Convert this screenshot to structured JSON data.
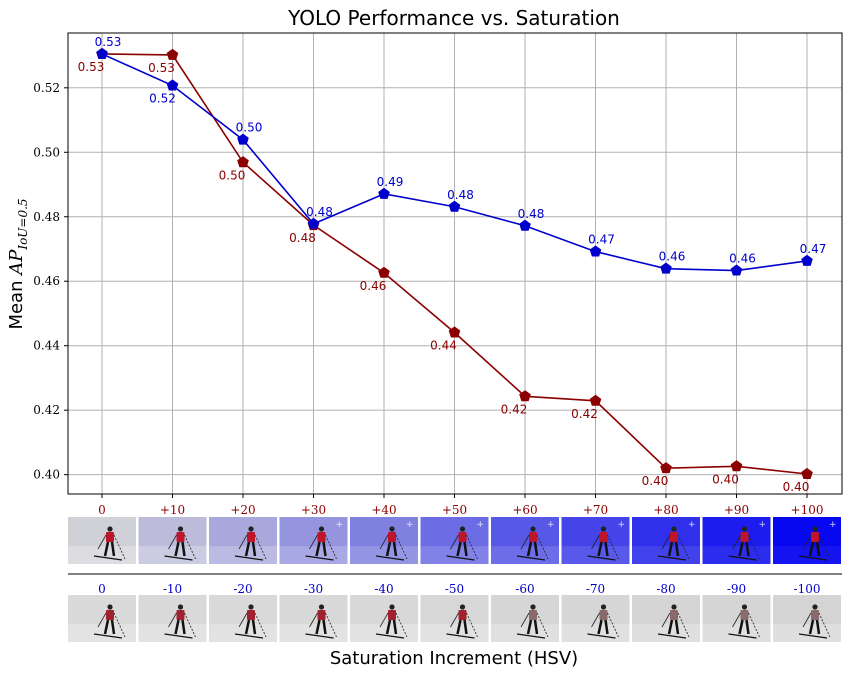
{
  "chart_data": {
    "type": "line",
    "title": "YOLO Performance vs. Saturation",
    "ylabel_prefix": "Mean ",
    "ylabel_math": "AP",
    "ylabel_sub": "IoU=0.5",
    "xlabel": "Saturation Increment (HSV)",
    "ylim": [
      0.394,
      0.537
    ],
    "yticks": [
      "0.40",
      "0.42",
      "0.44",
      "0.46",
      "0.48",
      "0.50",
      "0.52"
    ],
    "grid": true,
    "x": [
      0,
      10,
      20,
      30,
      40,
      50,
      60,
      70,
      80,
      90,
      100
    ],
    "positive_labels": [
      "0",
      "+10",
      "+20",
      "+30",
      "+40",
      "+50",
      "+60",
      "+70",
      "+80",
      "+90",
      "+100"
    ],
    "negative_labels": [
      "0",
      "-10",
      "-20",
      "-30",
      "-40",
      "-50",
      "-60",
      "-70",
      "-80",
      "-90",
      "-100"
    ],
    "series": [
      {
        "color": "#0000cd",
        "values": [
          0.5305,
          0.5207,
          0.5039,
          0.4778,
          0.4871,
          0.4831,
          0.4772,
          0.4692,
          0.4639,
          0.4633,
          0.4663
        ],
        "labels": [
          "0.53",
          "0.52",
          "0.50",
          "0.48",
          "0.49",
          "0.48",
          "0.48",
          "0.47",
          "0.46",
          "0.46",
          "0.47"
        ]
      },
      {
        "color": "#8b0000",
        "values": [
          0.5305,
          0.5302,
          0.4969,
          0.4774,
          0.4626,
          0.4441,
          0.4243,
          0.4229,
          0.402,
          0.4026,
          0.4002
        ],
        "labels": [
          "0.53",
          "0.53",
          "0.50",
          "0.48",
          "0.46",
          "0.44",
          "0.42",
          "0.42",
          "0.40",
          "0.40",
          "0.40"
        ]
      }
    ]
  }
}
